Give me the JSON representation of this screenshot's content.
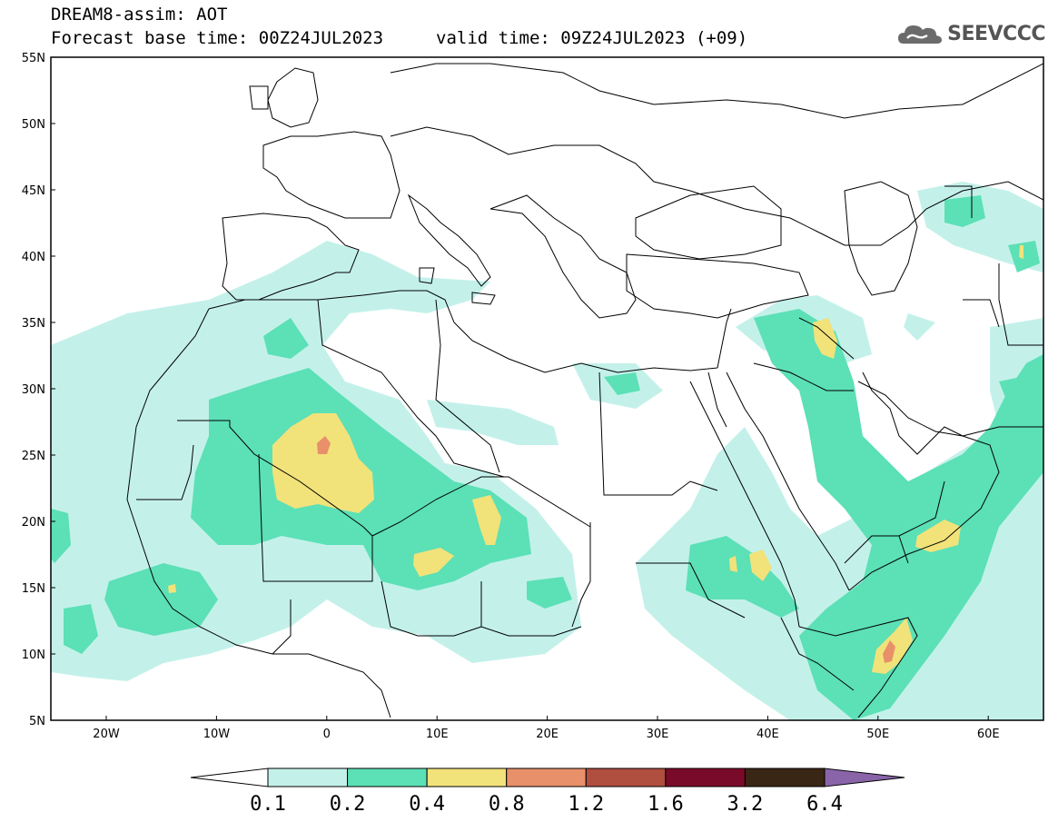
{
  "header": {
    "title": "DREAM8-assim: AOT",
    "base_time": "Forecast base time: 00Z24JUL2023",
    "valid_time": "valid time: 09Z24JUL2023 (+09)"
  },
  "logo": {
    "text": "SEEVCCC",
    "icon": "cloud-icon"
  },
  "map": {
    "lat_labels": [
      "55N",
      "50N",
      "45N",
      "40N",
      "35N",
      "30N",
      "25N",
      "20N",
      "15N",
      "10N",
      "5N"
    ],
    "lon_labels": [
      "20W",
      "10W",
      "0",
      "10E",
      "20E",
      "30E",
      "40E",
      "50E",
      "60E"
    ],
    "colors": {
      "c1": "#c3f1ea",
      "c2": "#5ce0b6",
      "c3": "#f2e27a",
      "c4": "#e8906a",
      "c5": "#b04e40",
      "c6": "#7a0a2a",
      "c7": "#3a2614",
      "c8": "#8a64a8"
    }
  },
  "colorbar": {
    "labels": [
      "0.1",
      "0.2",
      "0.4",
      "0.8",
      "1.2",
      "1.6",
      "3.2",
      "6.4"
    ],
    "colors": [
      "#c3f1ea",
      "#5ce0b6",
      "#f2e27a",
      "#e8906a",
      "#b04e40",
      "#7a0a2a",
      "#3a2614"
    ]
  }
}
